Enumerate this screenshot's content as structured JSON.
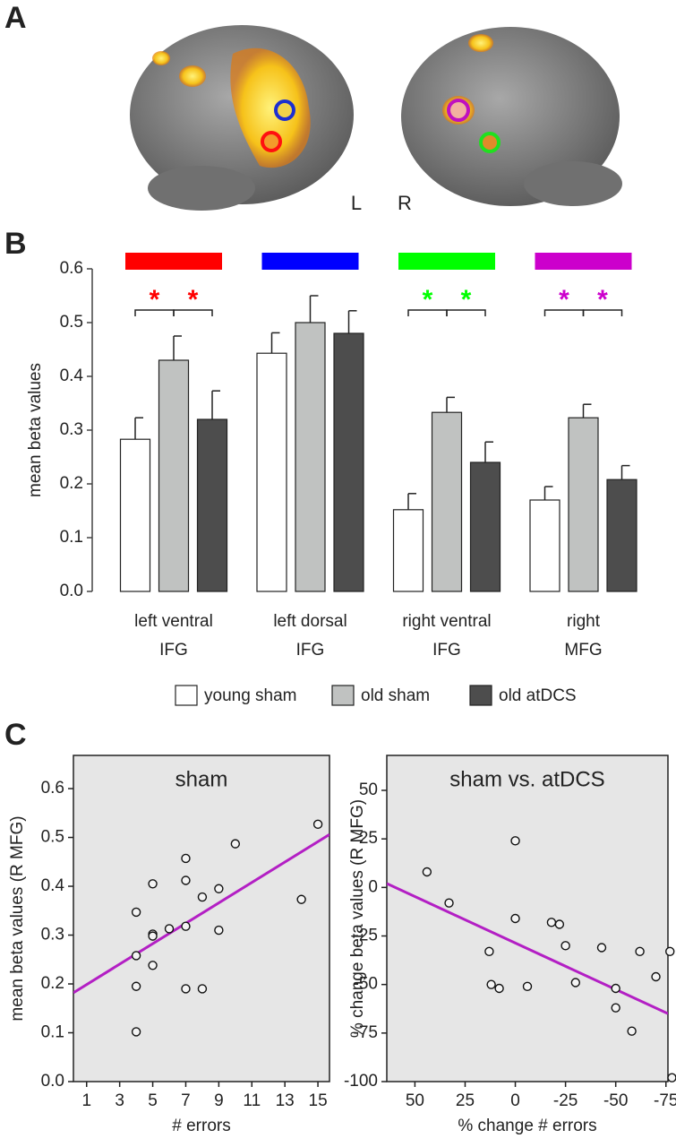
{
  "panel_labels": [
    "A",
    "B",
    "C"
  ],
  "hemisphere_labels": [
    "L",
    "R"
  ],
  "chart_data": [
    {
      "type": "bar",
      "ylabel": "mean beta values",
      "categories": [
        "left ventral\nIFG",
        "left dorsal\nIFG",
        "right ventral\nIFG",
        "right\nMFG"
      ],
      "category_colors": [
        "#ff0000",
        "#0000ff",
        "#00ff00",
        "#cc00cc"
      ],
      "series": [
        {
          "name": "young sham",
          "color": "#ffffff",
          "values": [
            0.283,
            0.443,
            0.152,
            0.17
          ],
          "errors": [
            0.04,
            0.038,
            0.03,
            0.025
          ]
        },
        {
          "name": "old sham",
          "color": "#c0c2c1",
          "values": [
            0.43,
            0.5,
            0.333,
            0.323
          ],
          "errors": [
            0.045,
            0.05,
            0.028,
            0.025
          ]
        },
        {
          "name": "old atDCS",
          "color": "#4d4d4d",
          "values": [
            0.32,
            0.48,
            0.24,
            0.208
          ],
          "errors": [
            0.053,
            0.042,
            0.038,
            0.026
          ]
        }
      ],
      "significance": [
        {
          "category": 0,
          "pairs": [
            [
              0,
              1
            ],
            [
              1,
              2
            ]
          ],
          "labels": [
            "*",
            "*"
          ]
        },
        {
          "category": 2,
          "pairs": [
            [
              0,
              1
            ],
            [
              1,
              2
            ]
          ],
          "labels": [
            "*",
            "*"
          ]
        },
        {
          "category": 3,
          "pairs": [
            [
              0,
              1
            ],
            [
              1,
              2
            ]
          ],
          "labels": [
            "*",
            "*"
          ]
        }
      ],
      "ylim": [
        0,
        0.6
      ],
      "yticks": [
        {
          "value": 0,
          "label": "0.0"
        },
        0.1,
        0.2,
        0.3,
        0.4,
        0.5,
        0.6
      ]
    },
    {
      "type": "scatter",
      "title": "sham",
      "xlabel": "# errors",
      "ylabel": "mean beta values (R MFG)",
      "x": [
        4,
        4,
        4,
        4,
        5,
        5,
        5,
        5,
        6,
        7,
        7,
        7,
        7,
        8,
        8,
        9,
        9,
        10,
        14,
        15
      ],
      "y": [
        0.347,
        0.258,
        0.195,
        0.102,
        0.405,
        0.302,
        0.298,
        0.238,
        0.313,
        0.457,
        0.412,
        0.318,
        0.19,
        0.378,
        0.19,
        0.395,
        0.31,
        0.487,
        0.373,
        0.527
      ],
      "fit": {
        "x": [
          0.2,
          15.7
        ],
        "y": [
          0.182,
          0.506
        ],
        "color": "#b31fc4"
      },
      "xlim": [
        0.2,
        15.7
      ],
      "xticks": [
        1,
        3,
        5,
        7,
        9,
        11,
        13,
        15
      ],
      "ylim": [
        0,
        0.668
      ],
      "yticks": [
        {
          "value": 0,
          "label": "0.0"
        },
        0.1,
        0.2,
        0.3,
        0.4,
        0.5,
        0.6
      ]
    },
    {
      "type": "scatter",
      "title": "sham vs. atDCS",
      "xlabel": "% change # errors",
      "ylabel": "% change beta values (R MFG)",
      "x": [
        44,
        33,
        13,
        12,
        8,
        0,
        0,
        -6,
        -18,
        -22,
        -25,
        -30,
        -43,
        -50,
        -50,
        -58,
        -62,
        -70,
        -77,
        -78
      ],
      "y": [
        8,
        -8,
        -33,
        -50,
        -52,
        24,
        -16,
        -51,
        -18,
        -19,
        -30,
        -49,
        -31,
        -52,
        -62,
        -74,
        -33,
        -46,
        -33,
        -98
      ],
      "fit": {
        "x": [
          64,
          -76
        ],
        "y": [
          2,
          -65
        ],
        "color": "#b31fc4"
      },
      "xlim": [
        64,
        -76
      ],
      "xticks": [
        50,
        25,
        0,
        -25,
        -50,
        -75
      ],
      "ylim": [
        -100,
        68
      ],
      "yticks": [
        -100,
        -75,
        -50,
        -25,
        0,
        25,
        50
      ]
    }
  ]
}
